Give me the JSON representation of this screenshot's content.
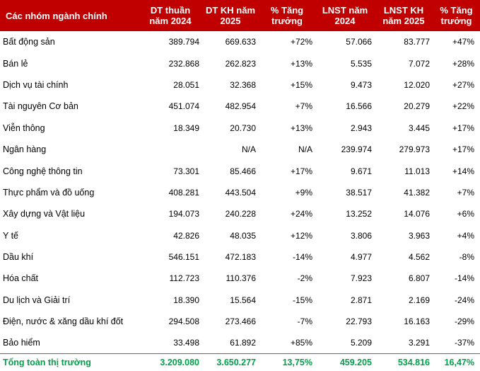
{
  "headers": [
    "Các nhóm ngành chính",
    "DT thuần năm 2024",
    "DT KH năm 2025",
    "% Tăng trưởng",
    "LNST năm 2024",
    "LNST KH năm 2025",
    "% Tăng trưởng"
  ],
  "rows": [
    [
      "Bất động sản",
      "389.794",
      "669.633",
      "+72%",
      "57.066",
      "83.777",
      "+47%"
    ],
    [
      "Bán lẻ",
      "232.868",
      "262.823",
      "+13%",
      "5.535",
      "7.072",
      "+28%"
    ],
    [
      "Dịch vụ tài chính",
      "28.051",
      "32.368",
      "+15%",
      "9.473",
      "12.020",
      "+27%"
    ],
    [
      "Tài nguyên Cơ bản",
      "451.074",
      "482.954",
      "+7%",
      "16.566",
      "20.279",
      "+22%"
    ],
    [
      "Viễn thông",
      "18.349",
      "20.730",
      "+13%",
      "2.943",
      "3.445",
      "+17%"
    ],
    [
      "Ngân hàng",
      "",
      "N/A",
      "N/A",
      "239.974",
      "279.973",
      "+17%"
    ],
    [
      "Công nghệ thông tin",
      "73.301",
      "85.466",
      "+17%",
      "9.671",
      "11.013",
      "+14%"
    ],
    [
      "Thực phẩm và đồ uống",
      "408.281",
      "443.504",
      "+9%",
      "38.517",
      "41.382",
      "+7%"
    ],
    [
      "Xây dựng và Vật liệu",
      "194.073",
      "240.228",
      "+24%",
      "13.252",
      "14.076",
      "+6%"
    ],
    [
      "Y tế",
      "42.826",
      "48.035",
      "+12%",
      "3.806",
      "3.963",
      "+4%"
    ],
    [
      "Dầu khí",
      "546.151",
      "472.183",
      "-14%",
      "4.977",
      "4.562",
      "-8%"
    ],
    [
      "Hóa chất",
      "112.723",
      "110.376",
      "-2%",
      "7.923",
      "6.807",
      "-14%"
    ],
    [
      "Du lịch và Giải trí",
      "18.390",
      "15.564",
      "-15%",
      "2.871",
      "2.169",
      "-24%"
    ],
    [
      "Điện, nước & xăng dầu khí đốt",
      "294.508",
      "273.466",
      "-7%",
      "22.793",
      "16.163",
      "-29%"
    ],
    [
      "Bảo hiểm",
      "33.498",
      "61.892",
      "+85%",
      "5.209",
      "3.291",
      "-37%"
    ]
  ],
  "total": [
    "Tổng toàn thị trường",
    "3.209.080",
    "3.650.277",
    "13,75%",
    "459.205",
    "534.816",
    "16,47%"
  ],
  "colors": {
    "header_bg": "#c00000",
    "header_text": "#ffffff",
    "total_text": "#00a04a"
  }
}
